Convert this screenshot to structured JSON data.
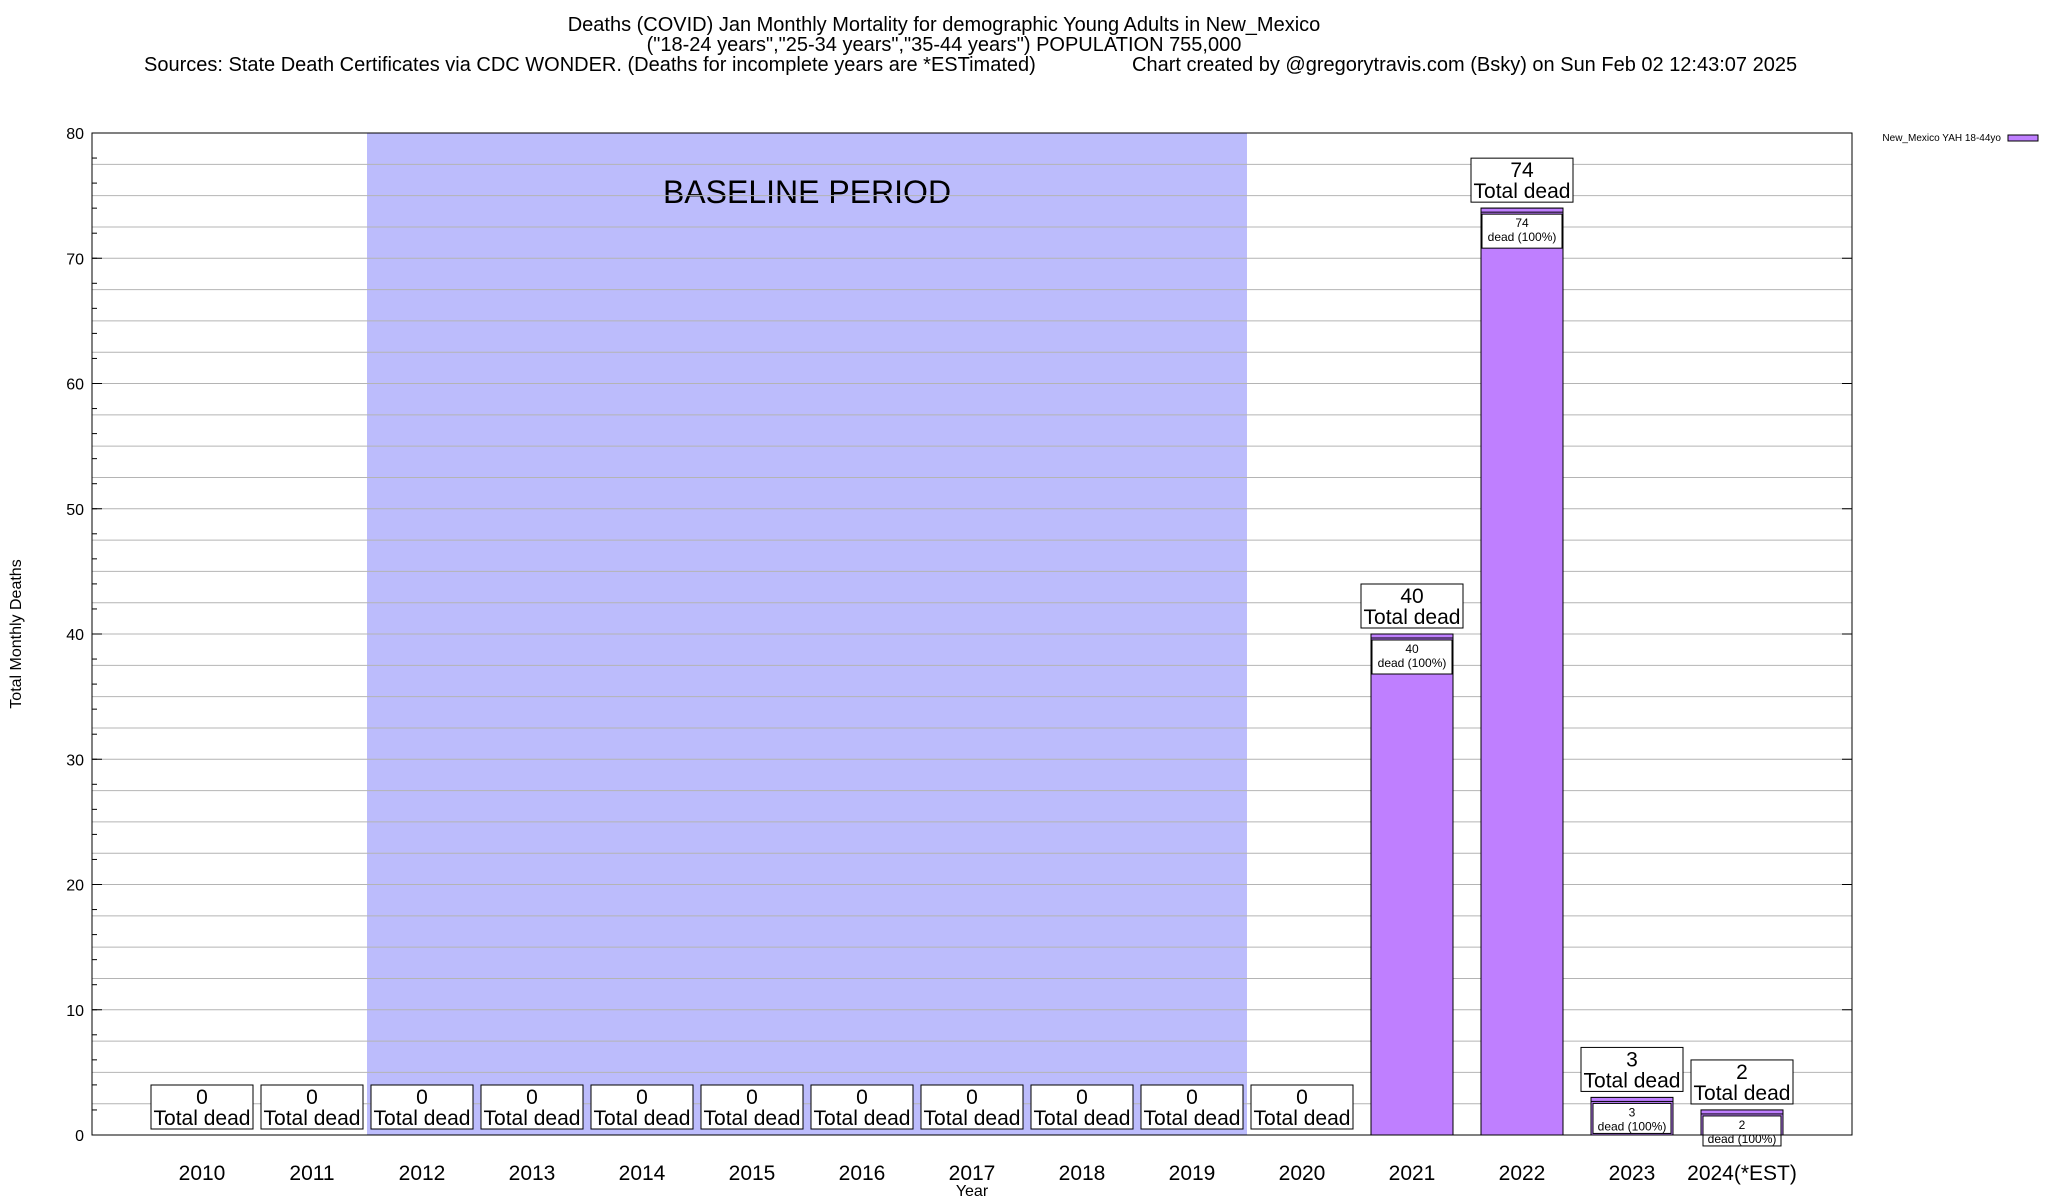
{
  "header": {
    "title": "Deaths (COVID) Jan Monthly Mortality for demographic Young Adults in New_Mexico",
    "subtitle": "(\"18-24 years\",\"25-34 years\",\"35-44 years\") POPULATION 755,000",
    "sources": "Sources: State Death Certificates via CDC WONDER. (Deaths for incomplete years are *ESTimated)",
    "credit": "Chart created by @gregorytravis.com (Bsky) on Sun Feb 02 12:43:07 2025"
  },
  "chart_data": {
    "type": "bar",
    "categories": [
      "2010",
      "2011",
      "2012",
      "2013",
      "2014",
      "2015",
      "2016",
      "2017",
      "2018",
      "2019",
      "2020",
      "2021",
      "2022",
      "2023",
      "2024(*EST)"
    ],
    "series": [
      {
        "name": "New_Mexico YAH 18-44yo",
        "values": [
          0,
          0,
          0,
          0,
          0,
          0,
          0,
          0,
          0,
          0,
          0,
          40,
          74,
          3,
          2
        ]
      }
    ],
    "total_label": "Total dead",
    "inner_label": "dead (100%)",
    "ylabel": "Total Monthly Deaths",
    "xlabel": "Year",
    "ylim": [
      0,
      80
    ],
    "yticks": [
      0,
      10,
      20,
      30,
      40,
      50,
      60,
      70,
      80
    ],
    "baseline": {
      "label": "BASELINE PERIOD",
      "from": "2012",
      "to": "2019"
    },
    "legend_position": "top-right",
    "colors": {
      "bar": "#bf7fff",
      "baseline": "#bcbcfc",
      "grid": "#b4b4b4"
    }
  }
}
